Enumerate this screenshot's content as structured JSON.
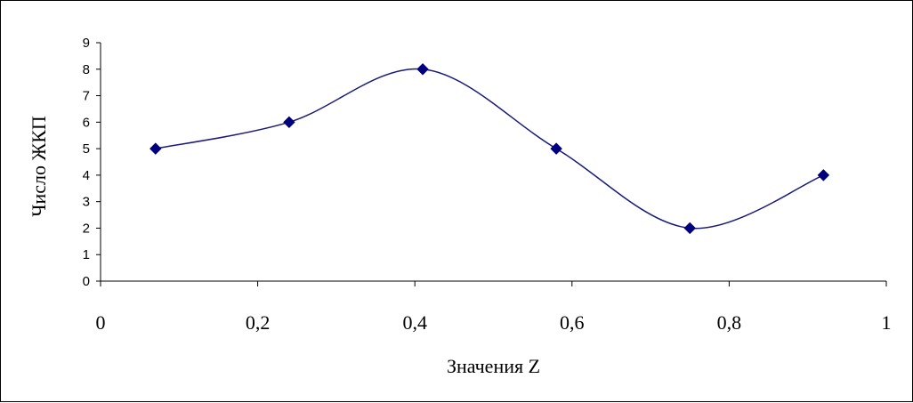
{
  "chart_data": {
    "type": "line",
    "xlabel": "Значения Z",
    "ylabel": "Число ЖКП",
    "xlim": [
      0,
      1
    ],
    "ylim": [
      0,
      9
    ],
    "x_ticks": [
      "0",
      "0,2",
      "0,4",
      "0,6",
      "0,8",
      "1"
    ],
    "y_ticks": [
      "0",
      "1",
      "2",
      "3",
      "4",
      "5",
      "6",
      "7",
      "8",
      "9"
    ],
    "x": [
      0.07,
      0.24,
      0.41,
      0.58,
      0.75,
      0.92
    ],
    "y": [
      5,
      6,
      8,
      5,
      2,
      4
    ],
    "smoothed": true,
    "marker": "diamond",
    "grid": false,
    "legend": "none",
    "line_color": "#1a1a7a",
    "marker_color": "#00007f"
  }
}
